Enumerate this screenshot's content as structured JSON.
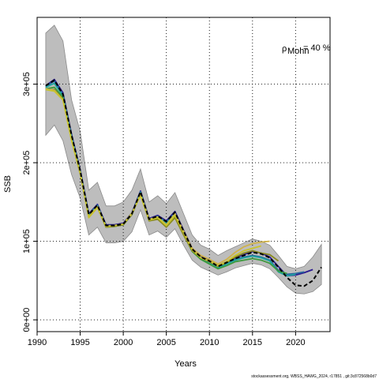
{
  "chart_data": {
    "type": "line",
    "xlabel": "Years",
    "ylabel": "SSB",
    "xlim": [
      1990,
      2024
    ],
    "ylim": [
      -15000,
      385000
    ],
    "x_ticks": [
      1990,
      1995,
      2000,
      2005,
      2010,
      2015,
      2020
    ],
    "y_ticks": [
      0,
      100000,
      200000,
      300000
    ],
    "y_tick_labels": [
      "0e+00",
      "1e+05",
      "2e+05",
      "3e+05"
    ],
    "grid": "dotted",
    "annotation": {
      "rho_symbol": "ρ",
      "rho_subscript": "Mohn",
      "rho_value": "= 40 %"
    },
    "source": "stockassessment.org, WBSS_HAWG_2024, r17851 , git:3c872568b0d7",
    "confidence_band": {
      "x": [
        1991,
        1992,
        1993,
        1994,
        1995,
        1996,
        1997,
        1998,
        1999,
        2000,
        2001,
        2002,
        2003,
        2004,
        2005,
        2006,
        2007,
        2008,
        2009,
        2010,
        2011,
        2012,
        2013,
        2014,
        2015,
        2016,
        2017,
        2018,
        2019,
        2020,
        2021,
        2022,
        2023
      ],
      "upper": [
        365000,
        375000,
        355000,
        280000,
        240000,
        165000,
        175000,
        145000,
        145000,
        150000,
        165000,
        192000,
        150000,
        158000,
        148000,
        162000,
        135000,
        108000,
        95000,
        90000,
        82000,
        88000,
        93000,
        98000,
        103000,
        100000,
        95000,
        82000,
        68000,
        65000,
        68000,
        80000,
        96000
      ],
      "lower": [
        235000,
        248000,
        228000,
        185000,
        155000,
        108000,
        118000,
        98000,
        98000,
        100000,
        112000,
        140000,
        108000,
        113000,
        105000,
        116000,
        95000,
        76000,
        67000,
        62000,
        57000,
        61000,
        66000,
        69000,
        72000,
        70000,
        65000,
        54000,
        42000,
        34000,
        33000,
        36000,
        45000
      ]
    },
    "series": [
      {
        "color": "#000000",
        "dashed": true,
        "start": 1991,
        "values": [
          298000,
          305000,
          287000,
          235000,
          190000,
          134000,
          146000,
          120000,
          120000,
          122000,
          135000,
          163000,
          128000,
          132000,
          125000,
          137000,
          113000,
          90000,
          80000,
          75000,
          68000,
          73000,
          78000,
          82000,
          86000,
          84000,
          79000,
          67000,
          54000,
          44000,
          43000,
          50000,
          67000
        ]
      },
      {
        "color": "#2b1a8f",
        "start": 1991,
        "values": [
          298000,
          306000,
          289000,
          236000,
          191000,
          135000,
          147000,
          121000,
          121000,
          123000,
          136000,
          164000,
          129000,
          133000,
          126000,
          138000,
          114000,
          91000,
          81000,
          76000,
          69000,
          74000,
          79000,
          83000,
          87000,
          85000,
          80000,
          68000,
          56000,
          57000,
          60000,
          64000
        ]
      },
      {
        "color": "#27669e",
        "start": 1991,
        "values": [
          297000,
          304000,
          287000,
          234000,
          190000,
          134000,
          146000,
          120000,
          120000,
          122000,
          135000,
          163000,
          128000,
          132000,
          124000,
          136000,
          112000,
          89000,
          79000,
          74000,
          67000,
          72000,
          77000,
          80000,
          82000,
          80000,
          76000,
          63000,
          58000,
          59000,
          61000
        ]
      },
      {
        "color": "#1ea6a0",
        "start": 1991,
        "values": [
          296000,
          301000,
          285000,
          232000,
          189000,
          133000,
          145000,
          119000,
          119000,
          121000,
          134000,
          162000,
          127000,
          131000,
          123000,
          135000,
          111000,
          88000,
          78000,
          73000,
          66000,
          71000,
          76000,
          79000,
          81000,
          79000,
          75000,
          61000,
          56000,
          58000
        ]
      },
      {
        "color": "#3d9a3d",
        "start": 1991,
        "values": [
          294000,
          296000,
          283000,
          230000,
          187000,
          132000,
          144000,
          118000,
          119000,
          121000,
          134000,
          161000,
          126000,
          129000,
          119000,
          131000,
          109000,
          87000,
          77000,
          71000,
          65000,
          69000,
          74000,
          76000,
          78000,
          76000,
          72000,
          62000,
          59000
        ]
      },
      {
        "color": "#8a8a1e",
        "start": 1991,
        "values": [
          293000,
          293000,
          281000,
          229000,
          186000,
          131000,
          143000,
          118000,
          119000,
          121000,
          134000,
          160000,
          126000,
          128000,
          118000,
          130000,
          108000,
          88000,
          79000,
          74000,
          68000,
          73000,
          80000,
          85000,
          88000,
          85000,
          83000,
          75000
        ]
      },
      {
        "color": "#cfb24a",
        "start": 1991,
        "values": [
          294000,
          292000,
          280000,
          229000,
          188000,
          131000,
          144000,
          119000,
          120000,
          122000,
          135000,
          160000,
          128000,
          131000,
          121000,
          135000,
          113000,
          91000,
          82000,
          77000,
          71000,
          77000,
          86000,
          93000,
          97000,
          99000,
          100000
        ]
      },
      {
        "color": "#c9c42c",
        "start": 1991,
        "values": [
          293000,
          291000,
          280000,
          228000,
          187000,
          130000,
          143000,
          119000,
          120000,
          122000,
          136000,
          158000,
          127000,
          130000,
          120000,
          133000,
          111000,
          89000,
          79000,
          75000,
          69000,
          74000,
          82000,
          88000,
          91000,
          94000
        ]
      }
    ]
  }
}
